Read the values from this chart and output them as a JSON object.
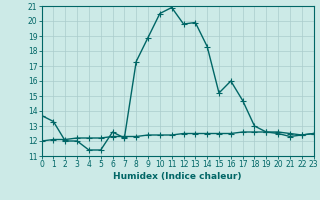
{
  "xlabel": "Humidex (Indice chaleur)",
  "background_color": "#cceae7",
  "grid_color": "#aacccc",
  "line_color": "#006666",
  "x": [
    0,
    1,
    2,
    3,
    4,
    5,
    6,
    7,
    8,
    9,
    10,
    11,
    12,
    13,
    14,
    15,
    16,
    17,
    18,
    19,
    20,
    21,
    22,
    23
  ],
  "y_main": [
    13.7,
    13.3,
    12.0,
    12.0,
    11.4,
    11.4,
    12.6,
    12.2,
    17.3,
    18.9,
    20.5,
    20.9,
    19.8,
    19.9,
    18.3,
    15.2,
    16.0,
    14.7,
    13.0,
    12.6,
    12.5,
    12.3,
    12.4,
    12.5
  ],
  "y_flat": [
    12.0,
    12.1,
    12.1,
    12.2,
    12.2,
    12.2,
    12.3,
    12.3,
    12.3,
    12.4,
    12.4,
    12.4,
    12.5,
    12.5,
    12.5,
    12.5,
    12.5,
    12.6,
    12.6,
    12.6,
    12.6,
    12.5,
    12.4,
    12.5
  ],
  "ylim": [
    11,
    21
  ],
  "xlim": [
    0,
    23
  ],
  "yticks": [
    11,
    12,
    13,
    14,
    15,
    16,
    17,
    18,
    19,
    20,
    21
  ],
  "xticks": [
    0,
    1,
    2,
    3,
    4,
    5,
    6,
    7,
    8,
    9,
    10,
    11,
    12,
    13,
    14,
    15,
    16,
    17,
    18,
    19,
    20,
    21,
    22,
    23
  ],
  "marker": "+",
  "markersize": 4,
  "linewidth": 1.0,
  "tick_fontsize": 5.5,
  "xlabel_fontsize": 6.5
}
